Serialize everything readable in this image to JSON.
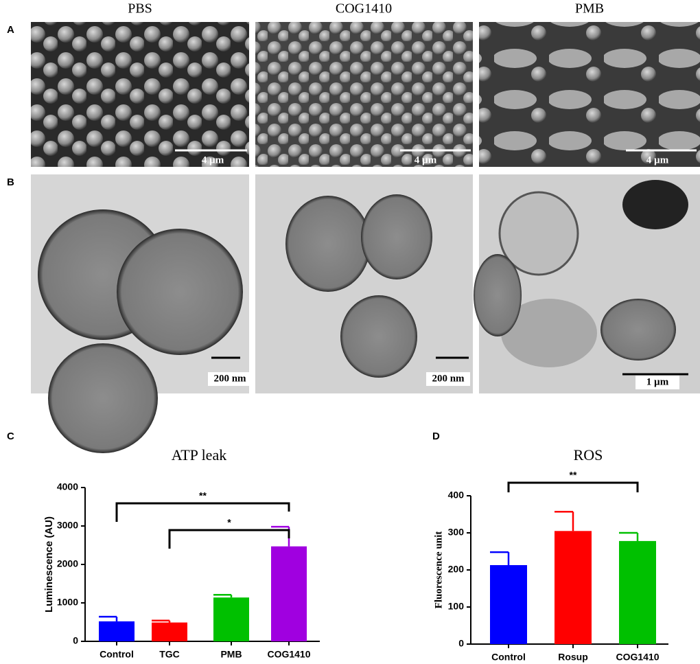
{
  "micrographs": {
    "columns": [
      "PBS",
      "COG1410",
      "PMB"
    ],
    "rows": [
      {
        "label": "A",
        "scale_labels": [
          "4 µm",
          "4 µm",
          "4 µm"
        ]
      },
      {
        "label": "B",
        "scale_labels": [
          "200 nm",
          "200 nm",
          "1 µm"
        ]
      }
    ]
  },
  "chart_data": [
    {
      "type": "bar",
      "panel": "C",
      "title": "ATP leak",
      "y_label": "Luminescence (AU)",
      "categories": [
        "Control",
        "TGC",
        "PMB",
        "COG1410"
      ],
      "values": [
        520,
        490,
        1140,
        2470
      ],
      "errors": [
        120,
        50,
        70,
        510
      ],
      "colors": [
        "#0000ff",
        "#ff0000",
        "#00c000",
        "#a000e0"
      ],
      "ylim": [
        0,
        4000
      ],
      "yticks": [
        0,
        1000,
        2000,
        3000,
        4000
      ],
      "annotations": [
        {
          "label": "**",
          "from": "Control",
          "to": "COG1410"
        },
        {
          "label": "*",
          "from": "TGC",
          "to": "COG1410"
        }
      ]
    },
    {
      "type": "bar",
      "panel": "D",
      "title": "ROS",
      "y_label": "Fluorescence unit",
      "categories": [
        "Control",
        "Rosup",
        "COG1410"
      ],
      "values": [
        213,
        305,
        278
      ],
      "errors": [
        35,
        52,
        22
      ],
      "colors": [
        "#0000ff",
        "#ff0000",
        "#00c000"
      ],
      "ylim": [
        0,
        400
      ],
      "yticks": [
        0,
        100,
        200,
        300,
        400
      ],
      "annotations": [
        {
          "label": "**",
          "from": "Control",
          "to": "COG1410"
        }
      ]
    }
  ]
}
